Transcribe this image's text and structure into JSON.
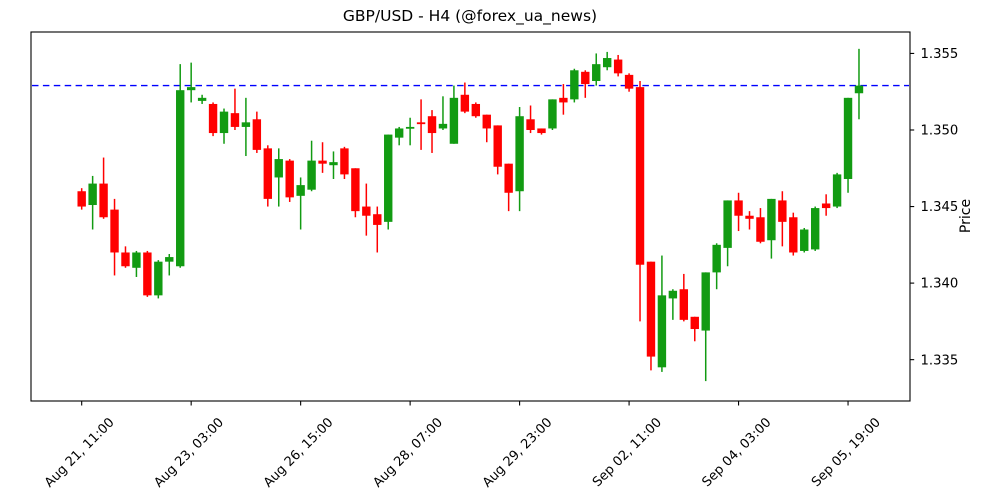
{
  "chart_data": {
    "type": "candlestick",
    "title": "GBP/USD - H4 (@forex_ua_news)",
    "ylabel": "Price",
    "instrument": "GBP/USD",
    "timeframe": "H4",
    "source": "@forex_ua_news",
    "ylim": [
      1.3323,
      1.3564
    ],
    "xlim": [
      -4.63,
      75.66
    ],
    "grid": false,
    "hline": {
      "price": 1.3529,
      "color": "#0000ff",
      "style": "dashed"
    },
    "colors": {
      "up": "#129b12",
      "down": "#ff0000",
      "axis": "#000000"
    },
    "y_ticks": [
      {
        "value": 1.355,
        "label": "1.355"
      },
      {
        "value": 1.35,
        "label": "1.350"
      },
      {
        "value": 1.345,
        "label": "1.345"
      },
      {
        "value": 1.34,
        "label": "1.340"
      },
      {
        "value": 1.335,
        "label": "1.335"
      }
    ],
    "x_ticks": [
      {
        "index": 0,
        "label": "Aug 21, 11:00"
      },
      {
        "index": 10,
        "label": "Aug 23, 03:00"
      },
      {
        "index": 20,
        "label": "Aug 26, 15:00"
      },
      {
        "index": 30,
        "label": "Aug 28, 07:00"
      },
      {
        "index": 40,
        "label": "Aug 29, 23:00"
      },
      {
        "index": 50,
        "label": "Sep 02, 11:00"
      },
      {
        "index": 60,
        "label": "Sep 04, 03:00"
      },
      {
        "index": 70,
        "label": "Sep 05, 19:00"
      }
    ],
    "candles_format": [
      "open",
      "high",
      "low",
      "close"
    ],
    "candles": [
      [
        1.346,
        1.3462,
        1.3448,
        1.345
      ],
      [
        1.3451,
        1.347,
        1.3435,
        1.3465
      ],
      [
        1.3465,
        1.3482,
        1.3442,
        1.3443
      ],
      [
        1.3448,
        1.3455,
        1.3405,
        1.342
      ],
      [
        1.342,
        1.3424,
        1.341,
        1.3411
      ],
      [
        1.341,
        1.3421,
        1.3404,
        1.342
      ],
      [
        1.342,
        1.3421,
        1.3391,
        1.3392
      ],
      [
        1.3392,
        1.3415,
        1.339,
        1.3414
      ],
      [
        1.3414,
        1.3419,
        1.3405,
        1.3417
      ],
      [
        1.3411,
        1.3543,
        1.341,
        1.3526
      ],
      [
        1.3526,
        1.3544,
        1.3518,
        1.3528
      ],
      [
        1.3519,
        1.3523,
        1.3517,
        1.3521
      ],
      [
        1.3517,
        1.3518,
        1.3496,
        1.3498
      ],
      [
        1.3498,
        1.3514,
        1.3491,
        1.3512
      ],
      [
        1.3511,
        1.3527,
        1.35,
        1.3502
      ],
      [
        1.3502,
        1.3521,
        1.3483,
        1.3505
      ],
      [
        1.3507,
        1.3512,
        1.3485,
        1.3487
      ],
      [
        1.3488,
        1.349,
        1.345,
        1.3455
      ],
      [
        1.3469,
        1.3488,
        1.345,
        1.3481
      ],
      [
        1.348,
        1.3481,
        1.3453,
        1.3456
      ],
      [
        1.3457,
        1.3469,
        1.3435,
        1.3464
      ],
      [
        1.3461,
        1.3493,
        1.346,
        1.348
      ],
      [
        1.348,
        1.3492,
        1.3472,
        1.3478
      ],
      [
        1.3477,
        1.3486,
        1.3468,
        1.3479
      ],
      [
        1.3488,
        1.3489,
        1.3468,
        1.3471
      ],
      [
        1.3475,
        1.3475,
        1.3443,
        1.3447
      ],
      [
        1.345,
        1.3465,
        1.3431,
        1.3444
      ],
      [
        1.3445,
        1.345,
        1.342,
        1.3438
      ],
      [
        1.344,
        1.3497,
        1.3435,
        1.3497
      ],
      [
        1.3495,
        1.3502,
        1.349,
        1.3501
      ],
      [
        1.3501,
        1.3508,
        1.349,
        1.3502
      ],
      [
        1.3505,
        1.352,
        1.3487,
        1.3504
      ],
      [
        1.3509,
        1.3513,
        1.3485,
        1.3498
      ],
      [
        1.3501,
        1.3522,
        1.35,
        1.3504
      ],
      [
        1.3491,
        1.3529,
        1.3491,
        1.3521
      ],
      [
        1.3523,
        1.3531,
        1.3511,
        1.3512
      ],
      [
        1.3517,
        1.3518,
        1.3508,
        1.3509
      ],
      [
        1.351,
        1.351,
        1.3492,
        1.3501
      ],
      [
        1.3503,
        1.3503,
        1.3471,
        1.3476
      ],
      [
        1.3478,
        1.3478,
        1.3447,
        1.3459
      ],
      [
        1.346,
        1.3515,
        1.3447,
        1.3509
      ],
      [
        1.3507,
        1.3516,
        1.3498,
        1.35
      ],
      [
        1.3501,
        1.3501,
        1.3497,
        1.3498
      ],
      [
        1.3501,
        1.352,
        1.35,
        1.352
      ],
      [
        1.3521,
        1.353,
        1.351,
        1.3518
      ],
      [
        1.352,
        1.354,
        1.3518,
        1.3539
      ],
      [
        1.3538,
        1.3539,
        1.3521,
        1.353
      ],
      [
        1.3532,
        1.355,
        1.3529,
        1.3543
      ],
      [
        1.3541,
        1.3551,
        1.3539,
        1.3547
      ],
      [
        1.3546,
        1.3549,
        1.3535,
        1.3537
      ],
      [
        1.3536,
        1.3537,
        1.3525,
        1.3527
      ],
      [
        1.3528,
        1.3532,
        1.3375,
        1.3412
      ],
      [
        1.3414,
        1.3414,
        1.3343,
        1.3352
      ],
      [
        1.3345,
        1.3418,
        1.3342,
        1.3392
      ],
      [
        1.339,
        1.3396,
        1.3376,
        1.3395
      ],
      [
        1.3396,
        1.3406,
        1.3375,
        1.3376
      ],
      [
        1.3378,
        1.3378,
        1.3362,
        1.337
      ],
      [
        1.3369,
        1.3407,
        1.3336,
        1.3407
      ],
      [
        1.3407,
        1.3426,
        1.3396,
        1.3425
      ],
      [
        1.3423,
        1.3454,
        1.3411,
        1.3454
      ],
      [
        1.3454,
        1.3459,
        1.3434,
        1.3444
      ],
      [
        1.3444,
        1.3447,
        1.3435,
        1.3442
      ],
      [
        1.3443,
        1.3449,
        1.3426,
        1.3427
      ],
      [
        1.3428,
        1.3455,
        1.3416,
        1.3455
      ],
      [
        1.3454,
        1.346,
        1.3424,
        1.344
      ],
      [
        1.3443,
        1.3446,
        1.3418,
        1.342
      ],
      [
        1.3421,
        1.3436,
        1.342,
        1.3435
      ],
      [
        1.3422,
        1.345,
        1.3421,
        1.3449
      ],
      [
        1.3452,
        1.3458,
        1.3444,
        1.3449
      ],
      [
        1.345,
        1.3472,
        1.3449,
        1.3471
      ],
      [
        1.3468,
        1.3521,
        1.3459,
        1.3521
      ],
      [
        1.3524,
        1.3553,
        1.3507,
        1.3529
      ]
    ]
  }
}
